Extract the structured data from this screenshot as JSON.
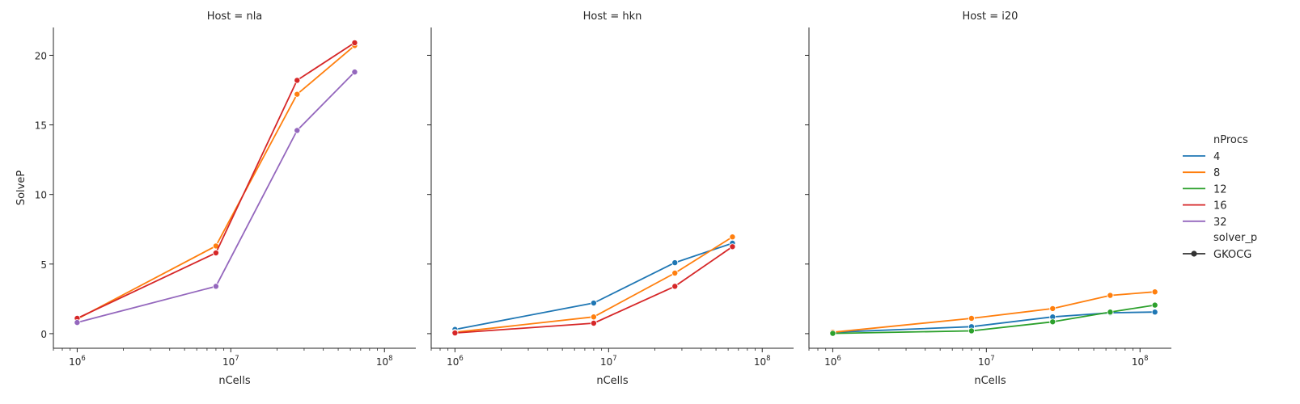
{
  "chart_data": [
    {
      "type": "line",
      "title": "Host = nla",
      "xlabel": "nCells",
      "ylabel": "SolveP",
      "xscale": "log",
      "xlim": [
        700000,
        160000000
      ],
      "ylim": [
        -1.05,
        22
      ],
      "xticks": [
        {
          "value": 1000000,
          "base": "10",
          "exp": "6"
        },
        {
          "value": 10000000,
          "base": "10",
          "exp": "7"
        },
        {
          "value": 100000000,
          "base": "10",
          "exp": "8"
        }
      ],
      "yticks": [
        0,
        5,
        10,
        15,
        20
      ],
      "grid": false,
      "series": [
        {
          "name": "8",
          "color": "#ff7f0e",
          "x": [
            1000000,
            8000000,
            27000000,
            64000000
          ],
          "y": [
            1.05,
            6.3,
            17.2,
            20.7
          ]
        },
        {
          "name": "16",
          "color": "#d62728",
          "x": [
            1000000,
            8000000,
            27000000,
            64000000
          ],
          "y": [
            1.1,
            5.8,
            18.2,
            20.9
          ]
        },
        {
          "name": "32",
          "color": "#9467bd",
          "x": [
            1000000,
            8000000,
            27000000,
            64000000
          ],
          "y": [
            0.8,
            3.4,
            14.6,
            18.8
          ]
        }
      ]
    },
    {
      "type": "line",
      "title": "Host = hkn",
      "xlabel": "nCells",
      "ylabel": "",
      "xscale": "log",
      "xlim": [
        700000,
        160000000
      ],
      "ylim": [
        -1.05,
        22
      ],
      "xticks": [
        {
          "value": 1000000,
          "base": "10",
          "exp": "6"
        },
        {
          "value": 10000000,
          "base": "10",
          "exp": "7"
        },
        {
          "value": 100000000,
          "base": "10",
          "exp": "8"
        }
      ],
      "yticks": [],
      "grid": false,
      "series": [
        {
          "name": "4",
          "color": "#1f77b4",
          "x": [
            1000000,
            8000000,
            27000000,
            64000000
          ],
          "y": [
            0.3,
            2.2,
            5.1,
            6.5
          ]
        },
        {
          "name": "8",
          "color": "#ff7f0e",
          "x": [
            1000000,
            8000000,
            27000000,
            64000000
          ],
          "y": [
            0.1,
            1.2,
            4.35,
            6.95
          ]
        },
        {
          "name": "16",
          "color": "#d62728",
          "x": [
            1000000,
            8000000,
            27000000,
            64000000
          ],
          "y": [
            0.05,
            0.75,
            3.4,
            6.25
          ]
        }
      ]
    },
    {
      "type": "line",
      "title": "Host = i20",
      "xlabel": "nCells",
      "ylabel": "",
      "xscale": "log",
      "xlim": [
        700000,
        160000000
      ],
      "ylim": [
        -1.05,
        22
      ],
      "xticks": [
        {
          "value": 1000000,
          "base": "10",
          "exp": "6"
        },
        {
          "value": 10000000,
          "base": "10",
          "exp": "7"
        },
        {
          "value": 100000000,
          "base": "10",
          "exp": "8"
        }
      ],
      "yticks": [],
      "grid": false,
      "series": [
        {
          "name": "4",
          "color": "#1f77b4",
          "x": [
            1000000,
            8000000,
            27000000,
            64000000,
            125000000
          ],
          "y": [
            0.1,
            0.5,
            1.2,
            1.5,
            1.55
          ]
        },
        {
          "name": "8",
          "color": "#ff7f0e",
          "x": [
            1000000,
            8000000,
            27000000,
            64000000,
            125000000
          ],
          "y": [
            0.1,
            1.1,
            1.8,
            2.75,
            3.0
          ]
        },
        {
          "name": "12",
          "color": "#2ca02c",
          "x": [
            1000000,
            8000000,
            27000000,
            64000000,
            125000000
          ],
          "y": [
            0.02,
            0.2,
            0.85,
            1.55,
            2.05
          ]
        }
      ]
    }
  ],
  "legend": {
    "placement": "right",
    "hue_title": "nProcs",
    "hue_entries": [
      {
        "label": "4",
        "color": "#1f77b4"
      },
      {
        "label": "8",
        "color": "#ff7f0e"
      },
      {
        "label": "12",
        "color": "#2ca02c"
      },
      {
        "label": "16",
        "color": "#d62728"
      },
      {
        "label": "32",
        "color": "#9467bd"
      }
    ],
    "style_title": "solver_p",
    "style_entries": [
      {
        "label": "GKOCG",
        "color": "#333333"
      }
    ]
  }
}
